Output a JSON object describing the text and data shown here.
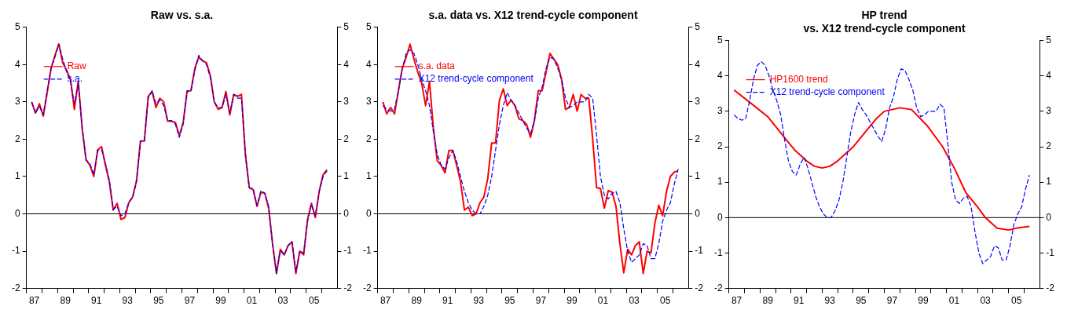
{
  "chart_data": [
    {
      "type": "line",
      "title": "Raw vs. s.a.",
      "x": [
        "1987-05",
        "1987-08",
        "1987-11",
        "1988-02",
        "1988-05",
        "1988-08",
        "1988-11",
        "1989-02",
        "1989-05",
        "1989-08",
        "1989-11",
        "1990-02",
        "1990-05",
        "1990-08",
        "1990-11",
        "1991-02",
        "1991-05",
        "1991-08",
        "1991-11",
        "1992-02",
        "1992-05",
        "1992-08",
        "1992-11",
        "1993-02",
        "1993-05",
        "1993-08",
        "1993-11",
        "1994-02",
        "1994-05",
        "1994-08",
        "1994-11",
        "1995-02",
        "1995-05",
        "1995-08",
        "1995-11",
        "1996-02",
        "1996-05",
        "1996-08",
        "1996-11",
        "1997-02",
        "1997-05",
        "1997-08",
        "1997-11",
        "1998-02",
        "1998-05",
        "1998-08",
        "1998-11",
        "1999-02",
        "1999-05",
        "1999-08",
        "1999-11",
        "2000-02",
        "2000-05",
        "2000-08",
        "2000-11",
        "2001-02",
        "2001-05",
        "2001-08",
        "2001-11",
        "2002-02",
        "2002-05",
        "2002-08",
        "2002-11",
        "2003-02",
        "2003-05",
        "2003-08",
        "2003-11",
        "2004-02",
        "2004-05",
        "2004-08",
        "2004-11",
        "2005-02",
        "2005-05",
        "2005-08",
        "2005-11",
        "2006-02",
        "2006-05"
      ],
      "series": [
        {
          "name": "Raw",
          "color": "#ff0000",
          "line_style": "solid",
          "values": [
            3.0,
            2.7,
            2.95,
            2.62,
            3.25,
            3.9,
            4.25,
            4.55,
            4.05,
            3.85,
            3.6,
            2.8,
            3.55,
            2.3,
            1.45,
            1.3,
            1.0,
            1.72,
            1.8,
            1.3,
            0.85,
            0.1,
            0.28,
            -0.15,
            -0.1,
            0.3,
            0.45,
            0.9,
            1.95,
            1.95,
            3.15,
            3.28,
            2.85,
            3.1,
            3.0,
            2.48,
            2.48,
            2.45,
            2.1,
            2.45,
            3.28,
            3.3,
            3.9,
            4.2,
            4.1,
            4.05,
            3.7,
            3.0,
            2.8,
            2.85,
            3.28,
            2.65,
            3.2,
            3.15,
            3.2,
            1.6,
            0.7,
            0.65,
            0.2,
            0.58,
            0.55,
            0.15,
            -0.8,
            -1.6,
            -0.95,
            -1.1,
            -0.85,
            -0.75,
            -1.6,
            -1.0,
            -1.1,
            -0.15,
            0.28,
            -0.1,
            0.6,
            1.05,
            1.18
          ]
        },
        {
          "name": "s.a.",
          "color": "#0000ff",
          "line_style": "dashed",
          "values": [
            3.0,
            2.7,
            2.88,
            2.65,
            3.3,
            3.9,
            4.2,
            4.55,
            4.15,
            3.8,
            3.55,
            2.95,
            3.5,
            2.3,
            1.45,
            1.35,
            1.05,
            1.7,
            1.72,
            1.35,
            0.9,
            0.12,
            0.2,
            -0.05,
            0.0,
            0.3,
            0.45,
            0.85,
            1.95,
            1.95,
            3.1,
            3.3,
            2.95,
            3.05,
            2.9,
            2.5,
            2.5,
            2.4,
            2.05,
            2.4,
            3.3,
            3.3,
            3.85,
            4.25,
            4.1,
            4.0,
            3.65,
            3.0,
            2.85,
            2.85,
            3.2,
            2.7,
            3.2,
            3.1,
            3.1,
            1.6,
            0.7,
            0.68,
            0.22,
            0.62,
            0.55,
            0.2,
            -0.8,
            -1.6,
            -1.0,
            -1.1,
            -0.85,
            -0.75,
            -1.55,
            -1.0,
            -1.05,
            -0.2,
            0.25,
            -0.05,
            0.6,
            1.0,
            1.15
          ]
        }
      ],
      "xlim": [
        "1987",
        "2007"
      ],
      "xticks": [
        {
          "value": "1987",
          "label": null
        },
        {
          "value": "1987-07",
          "label": "87"
        },
        {
          "value": "1988",
          "label": null
        },
        {
          "value": "1989",
          "label": null
        },
        {
          "value": "1989-07",
          "label": "89"
        },
        {
          "value": "1990",
          "label": null
        },
        {
          "value": "1991",
          "label": null
        },
        {
          "value": "1991-07",
          "label": "91"
        },
        {
          "value": "1992",
          "label": null
        },
        {
          "value": "1993",
          "label": null
        },
        {
          "value": "1993-07",
          "label": "93"
        },
        {
          "value": "1994",
          "label": null
        },
        {
          "value": "1995",
          "label": null
        },
        {
          "value": "1995-07",
          "label": "95"
        },
        {
          "value": "1996",
          "label": null
        },
        {
          "value": "1997",
          "label": null
        },
        {
          "value": "1997-07",
          "label": "97"
        },
        {
          "value": "1998",
          "label": null
        },
        {
          "value": "1999",
          "label": null
        },
        {
          "value": "1999-07",
          "label": "99"
        },
        {
          "value": "2000",
          "label": null
        },
        {
          "value": "2001",
          "label": null
        },
        {
          "value": "2001-07",
          "label": "01"
        },
        {
          "value": "2002",
          "label": null
        },
        {
          "value": "2003",
          "label": null
        },
        {
          "value": "2003-07",
          "label": "03"
        },
        {
          "value": "2004",
          "label": null
        },
        {
          "value": "2005",
          "label": null
        },
        {
          "value": "2005-07",
          "label": "05"
        },
        {
          "value": "2006",
          "label": null
        }
      ],
      "ylim": [
        -2,
        5
      ],
      "yticks": [
        -2,
        -1,
        0,
        1,
        2,
        3,
        4,
        5
      ],
      "y2lim": [
        -2,
        5
      ],
      "y2ticks": [
        -2,
        -1,
        0,
        1,
        2,
        3,
        4,
        5
      ],
      "ref_lines": [
        {
          "axis": "y",
          "value": 0,
          "color": "#000000"
        }
      ],
      "grid": false,
      "legend": "top left"
    },
    {
      "type": "line",
      "title": "s.a. data vs. X12 trend-cycle component",
      "x": [
        "1987-05",
        "1987-08",
        "1987-11",
        "1988-02",
        "1988-05",
        "1988-08",
        "1988-11",
        "1989-02",
        "1989-05",
        "1989-08",
        "1989-11",
        "1990-02",
        "1990-05",
        "1990-08",
        "1990-11",
        "1991-02",
        "1991-05",
        "1991-08",
        "1991-11",
        "1992-02",
        "1992-05",
        "1992-08",
        "1992-11",
        "1993-02",
        "1993-05",
        "1993-08",
        "1993-11",
        "1994-02",
        "1994-05",
        "1994-08",
        "1994-11",
        "1995-02",
        "1995-05",
        "1995-08",
        "1995-11",
        "1996-02",
        "1996-05",
        "1996-08",
        "1996-11",
        "1997-02",
        "1997-05",
        "1997-08",
        "1997-11",
        "1998-02",
        "1998-05",
        "1998-08",
        "1998-11",
        "1999-02",
        "1999-05",
        "1999-08",
        "1999-11",
        "2000-02",
        "2000-05",
        "2000-08",
        "2000-11",
        "2001-02",
        "2001-05",
        "2001-08",
        "2001-11",
        "2002-02",
        "2002-05",
        "2002-08",
        "2002-11",
        "2003-02",
        "2003-05",
        "2003-08",
        "2003-11",
        "2004-02",
        "2004-05",
        "2004-08",
        "2004-11",
        "2005-02",
        "2005-05",
        "2005-08",
        "2005-11",
        "2006-02",
        "2006-05"
      ],
      "series": [
        {
          "name": "s.a. data",
          "color": "#ff0000",
          "line_style": "solid",
          "values": [
            3.0,
            2.68,
            2.85,
            2.68,
            3.3,
            3.9,
            4.2,
            4.55,
            4.15,
            3.8,
            3.5,
            2.9,
            3.55,
            2.3,
            1.42,
            1.3,
            1.1,
            1.7,
            1.7,
            1.3,
            0.85,
            0.1,
            0.18,
            -0.05,
            0.0,
            0.3,
            0.45,
            0.95,
            1.9,
            1.9,
            3.05,
            3.35,
            2.9,
            3.05,
            2.9,
            2.55,
            2.5,
            2.4,
            2.05,
            2.5,
            3.3,
            3.3,
            3.8,
            4.3,
            4.15,
            4.0,
            3.6,
            2.8,
            2.85,
            3.2,
            2.75,
            3.2,
            3.1,
            3.1,
            2.0,
            0.7,
            0.68,
            0.15,
            0.62,
            0.58,
            0.2,
            -0.8,
            -1.58,
            -0.95,
            -1.1,
            -0.85,
            -0.75,
            -1.6,
            -1.0,
            -1.05,
            -0.25,
            0.23,
            -0.05,
            0.6,
            1.0,
            1.12,
            1.15
          ]
        },
        {
          "name": "X12 trend-cycle component",
          "color": "#0000ff",
          "line_style": "dashed",
          "values": [
            2.9,
            2.8,
            2.75,
            2.8,
            3.3,
            3.9,
            4.3,
            4.4,
            4.3,
            4.0,
            3.6,
            3.3,
            2.9,
            2.2,
            1.6,
            1.3,
            1.2,
            1.5,
            1.7,
            1.4,
            1.0,
            0.6,
            0.3,
            0.1,
            0.0,
            0.0,
            0.2,
            0.5,
            1.0,
            1.7,
            2.4,
            2.9,
            3.25,
            3.05,
            2.9,
            2.7,
            2.5,
            2.3,
            2.15,
            2.5,
            3.1,
            3.4,
            3.9,
            4.2,
            4.15,
            3.9,
            3.6,
            3.1,
            2.85,
            2.9,
            3.0,
            3.0,
            3.0,
            3.2,
            3.1,
            2.1,
            1.0,
            0.5,
            0.4,
            0.55,
            0.6,
            0.3,
            -0.4,
            -1.0,
            -1.3,
            -1.2,
            -1.1,
            -0.8,
            -0.85,
            -1.2,
            -1.2,
            -0.8,
            -0.2,
            0.1,
            0.3,
            0.8,
            1.2
          ]
        }
      ],
      "xlim": [
        "1987",
        "2007"
      ],
      "xticks": [
        {
          "value": "1987",
          "label": null
        },
        {
          "value": "1987-07",
          "label": "87"
        },
        {
          "value": "1988",
          "label": null
        },
        {
          "value": "1989",
          "label": null
        },
        {
          "value": "1989-07",
          "label": "89"
        },
        {
          "value": "1990",
          "label": null
        },
        {
          "value": "1991",
          "label": null
        },
        {
          "value": "1991-07",
          "label": "91"
        },
        {
          "value": "1992",
          "label": null
        },
        {
          "value": "1993",
          "label": null
        },
        {
          "value": "1993-07",
          "label": "93"
        },
        {
          "value": "1994",
          "label": null
        },
        {
          "value": "1995",
          "label": null
        },
        {
          "value": "1995-07",
          "label": "95"
        },
        {
          "value": "1996",
          "label": null
        },
        {
          "value": "1997",
          "label": null
        },
        {
          "value": "1997-07",
          "label": "97"
        },
        {
          "value": "1998",
          "label": null
        },
        {
          "value": "1999",
          "label": null
        },
        {
          "value": "1999-07",
          "label": "99"
        },
        {
          "value": "2000",
          "label": null
        },
        {
          "value": "2001",
          "label": null
        },
        {
          "value": "2001-07",
          "label": "01"
        },
        {
          "value": "2002",
          "label": null
        },
        {
          "value": "2003",
          "label": null
        },
        {
          "value": "2003-07",
          "label": "03"
        },
        {
          "value": "2004",
          "label": null
        },
        {
          "value": "2005",
          "label": null
        },
        {
          "value": "2005-07",
          "label": "05"
        },
        {
          "value": "2006",
          "label": null
        }
      ],
      "ylim": [
        -2,
        5
      ],
      "yticks": [
        -2,
        -1,
        0,
        1,
        2,
        3,
        4,
        5
      ],
      "y2lim": [
        -2,
        5
      ],
      "y2ticks": [
        -2,
        -1,
        0,
        1,
        2,
        3,
        4,
        5
      ],
      "ref_lines": [
        {
          "axis": "y",
          "value": 0,
          "color": "#000000"
        }
      ],
      "grid": false,
      "legend": "top left"
    },
    {
      "type": "line",
      "title": "HP trend\nvs. X12 trend-cycle component",
      "x": [
        "1987-05",
        "1987-08",
        "1987-11",
        "1988-02",
        "1988-05",
        "1988-08",
        "1988-11",
        "1989-02",
        "1989-05",
        "1989-08",
        "1989-11",
        "1990-02",
        "1990-05",
        "1990-08",
        "1990-11",
        "1991-02",
        "1991-05",
        "1991-08",
        "1991-11",
        "1992-02",
        "1992-05",
        "1992-08",
        "1992-11",
        "1993-02",
        "1993-05",
        "1993-08",
        "1993-11",
        "1994-02",
        "1994-05",
        "1994-08",
        "1994-11",
        "1995-02",
        "1995-05",
        "1995-08",
        "1995-11",
        "1996-02",
        "1996-05",
        "1996-08",
        "1996-11",
        "1997-02",
        "1997-05",
        "1997-08",
        "1997-11",
        "1998-02",
        "1998-05",
        "1998-08",
        "1998-11",
        "1999-02",
        "1999-05",
        "1999-08",
        "1999-11",
        "2000-02",
        "2000-05",
        "2000-08",
        "2000-11",
        "2001-02",
        "2001-05",
        "2001-08",
        "2001-11",
        "2002-02",
        "2002-05",
        "2002-08",
        "2002-11",
        "2003-02",
        "2003-05",
        "2003-08",
        "2003-11",
        "2004-02",
        "2004-05",
        "2004-08",
        "2004-11",
        "2005-02",
        "2005-05",
        "2005-08",
        "2005-11",
        "2006-02",
        "2006-05"
      ],
      "series": [
        {
          "name": "HP1600 trend",
          "color": "#ff0000",
          "line_style": "solid",
          "x": [
            "1987-05",
            "1988-07",
            "1989-07",
            "1990-07",
            "1991-04",
            "1992-01",
            "1992-07",
            "1993-01",
            "1993-07",
            "1994-01",
            "1995-01",
            "1995-10",
            "1996-07",
            "1997-01",
            "1998-01",
            "1998-10",
            "1999-10",
            "2000-10",
            "2001-07",
            "2002-04",
            "2003-01",
            "2003-07",
            "2004-04",
            "2005-01",
            "2005-07",
            "2006-05"
          ],
          "values": [
            3.6,
            3.2,
            2.85,
            2.3,
            1.9,
            1.6,
            1.45,
            1.4,
            1.45,
            1.6,
            2.0,
            2.4,
            2.8,
            3.0,
            3.1,
            3.05,
            2.6,
            2.0,
            1.4,
            0.7,
            0.3,
            0.0,
            -0.3,
            -0.35,
            -0.3,
            -0.25
          ]
        },
        {
          "name": "X12 trend-cycle component",
          "color": "#0000ff",
          "line_style": "dashed",
          "values": [
            2.9,
            2.8,
            2.75,
            2.8,
            3.3,
            3.9,
            4.3,
            4.4,
            4.3,
            4.0,
            3.6,
            3.3,
            2.9,
            2.2,
            1.6,
            1.3,
            1.2,
            1.5,
            1.7,
            1.4,
            1.0,
            0.6,
            0.3,
            0.1,
            0.0,
            0.0,
            0.2,
            0.5,
            1.0,
            1.7,
            2.4,
            2.9,
            3.25,
            3.05,
            2.9,
            2.7,
            2.5,
            2.3,
            2.15,
            2.5,
            3.1,
            3.4,
            3.9,
            4.2,
            4.15,
            3.9,
            3.6,
            3.1,
            2.85,
            2.9,
            3.0,
            3.0,
            3.0,
            3.2,
            3.1,
            2.1,
            1.0,
            0.5,
            0.4,
            0.55,
            0.6,
            0.3,
            -0.4,
            -1.0,
            -1.3,
            -1.2,
            -1.1,
            -0.8,
            -0.85,
            -1.2,
            -1.2,
            -0.8,
            -0.2,
            0.1,
            0.3,
            0.8,
            1.2
          ]
        }
      ],
      "xlim": [
        "1987",
        "2007"
      ],
      "xticks": [
        {
          "value": "1987",
          "label": null
        },
        {
          "value": "1987-07",
          "label": "87"
        },
        {
          "value": "1988",
          "label": null
        },
        {
          "value": "1989",
          "label": null
        },
        {
          "value": "1989-07",
          "label": "89"
        },
        {
          "value": "1990",
          "label": null
        },
        {
          "value": "1991",
          "label": null
        },
        {
          "value": "1991-07",
          "label": "91"
        },
        {
          "value": "1992",
          "label": null
        },
        {
          "value": "1993",
          "label": null
        },
        {
          "value": "1993-07",
          "label": "93"
        },
        {
          "value": "1994",
          "label": null
        },
        {
          "value": "1995",
          "label": null
        },
        {
          "value": "1995-07",
          "label": "95"
        },
        {
          "value": "1996",
          "label": null
        },
        {
          "value": "1997",
          "label": null
        },
        {
          "value": "1997-07",
          "label": "97"
        },
        {
          "value": "1998",
          "label": null
        },
        {
          "value": "1999",
          "label": null
        },
        {
          "value": "1999-07",
          "label": "99"
        },
        {
          "value": "2000",
          "label": null
        },
        {
          "value": "2001",
          "label": null
        },
        {
          "value": "2001-07",
          "label": "01"
        },
        {
          "value": "2002",
          "label": null
        },
        {
          "value": "2003",
          "label": null
        },
        {
          "value": "2003-07",
          "label": "03"
        },
        {
          "value": "2004",
          "label": null
        },
        {
          "value": "2005",
          "label": null
        },
        {
          "value": "2005-07",
          "label": "05"
        },
        {
          "value": "2006",
          "label": null
        }
      ],
      "ylim": [
        -2,
        5
      ],
      "yticks": [
        -2,
        -1,
        0,
        1,
        2,
        3,
        4,
        5
      ],
      "y2lim": [
        -2,
        5
      ],
      "y2ticks": [
        -2,
        -1,
        0,
        1,
        2,
        3,
        4,
        5
      ],
      "ref_lines": [
        {
          "axis": "y",
          "value": 0,
          "color": "#000000"
        }
      ],
      "grid": false,
      "legend": "top left"
    }
  ]
}
